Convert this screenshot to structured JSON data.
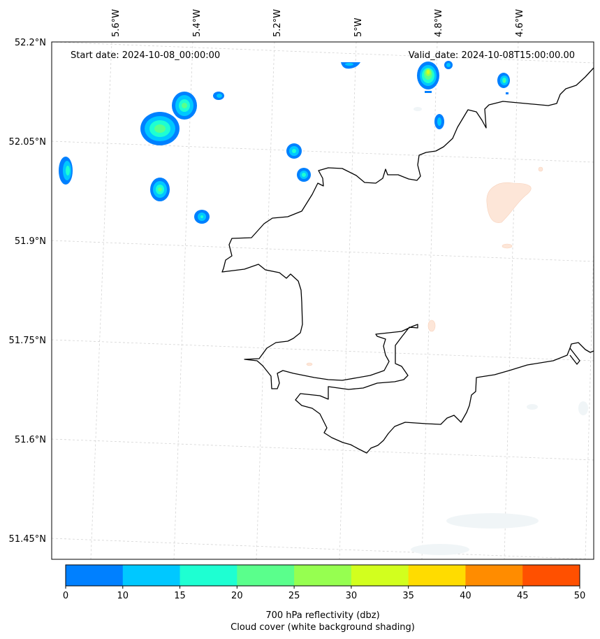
{
  "header": {
    "start_label": "Start date: 2024-10-08_00:00:00",
    "valid_label": "Valid_date: 2024-10-08T15:00:00.00"
  },
  "axes": {
    "lon_labels": [
      "5.6°W",
      "5.4°W",
      "5.2°W",
      "5°W",
      "4.8°W",
      "4.6°W"
    ],
    "lat_labels": [
      "52.2°N",
      "52.05°N",
      "51.9°N",
      "51.75°N",
      "51.6°N",
      "51.45°N"
    ]
  },
  "colorbar": {
    "tick_labels": [
      "0",
      "10",
      "15",
      "20",
      "25",
      "30",
      "35",
      "40",
      "45",
      "50"
    ],
    "colors": [
      "#0080ff",
      "#00c8ff",
      "#1effd2",
      "#5aff8c",
      "#96ff50",
      "#d2ff1e",
      "#ffdc00",
      "#ff8c00",
      "#ff5000"
    ],
    "label_line1": "700 hPa reflectivity (dbz)",
    "label_line2": "Cloud cover (white background shading)"
  },
  "map": {
    "coastline_color": "#000000",
    "grid_color": "#cccccc",
    "cloud_color": "#f2f6f8",
    "low_level_shade_color": "#fde4d4"
  }
}
